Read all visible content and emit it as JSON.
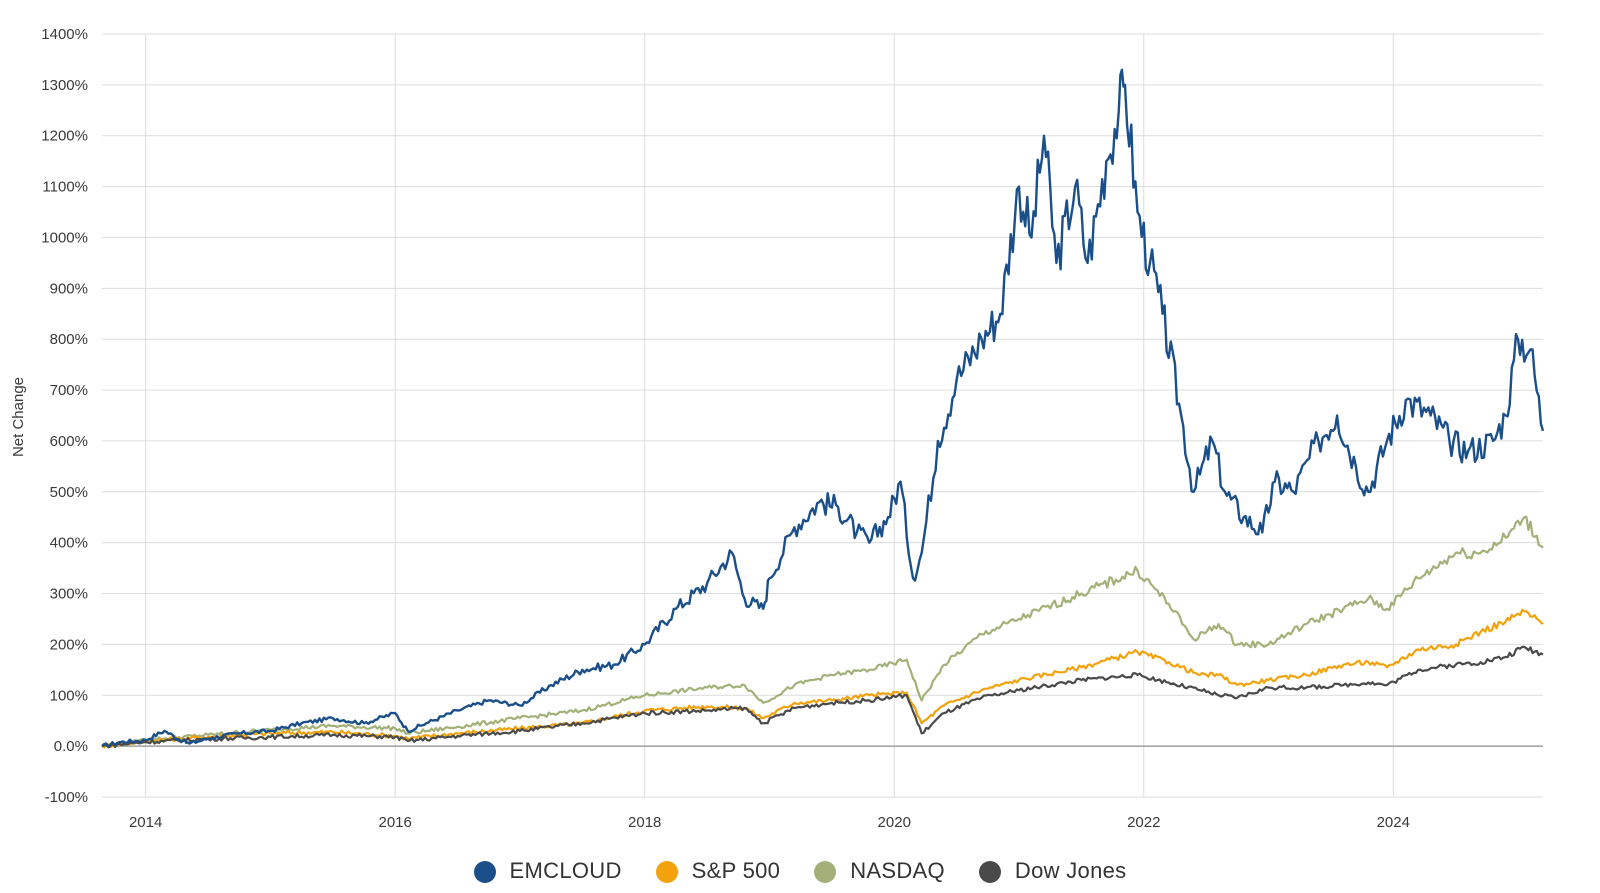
{
  "chart_data": {
    "type": "line",
    "title": "",
    "xlabel": "",
    "ylabel": "Net Change",
    "xlim": [
      2013.65,
      2025.2
    ],
    "ylim": [
      -100,
      1400
    ],
    "y_ticks": [
      -100,
      0,
      100,
      200,
      300,
      400,
      500,
      600,
      700,
      800,
      900,
      1000,
      1100,
      1200,
      1300,
      1400
    ],
    "y_tick_labels": [
      "-100%",
      "0.0%",
      "100%",
      "200%",
      "300%",
      "400%",
      "500%",
      "600%",
      "700%",
      "800%",
      "900%",
      "1000%",
      "1100%",
      "1200%",
      "1300%",
      "1400%"
    ],
    "x_ticks": [
      2014,
      2016,
      2018,
      2020,
      2022,
      2024
    ],
    "x_tick_labels": [
      "2014",
      "2016",
      "2018",
      "2020",
      "2022",
      "2024"
    ],
    "grid": true,
    "legend_position": "bottom-center",
    "series": [
      {
        "name": "EMCLOUD",
        "color": "#1b4f8a",
        "x": [
          2013.65,
          2013.8,
          2014.0,
          2014.15,
          2014.3,
          2014.35,
          2014.5,
          2014.75,
          2015.0,
          2015.25,
          2015.5,
          2015.75,
          2016.0,
          2016.1,
          2016.25,
          2016.5,
          2016.75,
          2017.0,
          2017.25,
          2017.5,
          2017.75,
          2018.0,
          2018.25,
          2018.5,
          2018.7,
          2018.8,
          2018.95,
          2019.0,
          2019.2,
          2019.4,
          2019.55,
          2019.7,
          2019.8,
          2019.95,
          2020.05,
          2020.15,
          2020.22,
          2020.35,
          2020.5,
          2020.7,
          2020.85,
          2021.0,
          2021.1,
          2021.2,
          2021.3,
          2021.45,
          2021.55,
          2021.7,
          2021.8,
          2021.85,
          2021.95,
          2022.05,
          2022.15,
          2022.3,
          2022.4,
          2022.55,
          2022.65,
          2022.8,
          2022.95,
          2023.05,
          2023.2,
          2023.4,
          2023.55,
          2023.7,
          2023.8,
          2023.95,
          2024.1,
          2024.3,
          2024.45,
          2024.6,
          2024.8,
          2024.9,
          2025.0,
          2025.1,
          2025.2
        ],
        "values": [
          0,
          8,
          12,
          30,
          10,
          5,
          15,
          25,
          30,
          45,
          55,
          45,
          65,
          30,
          45,
          70,
          90,
          80,
          120,
          150,
          160,
          200,
          270,
          320,
          380,
          290,
          270,
          330,
          430,
          480,
          470,
          420,
          400,
          450,
          520,
          330,
          380,
          600,
          720,
          800,
          850,
          1100,
          1000,
          1200,
          950,
          1100,
          950,
          1150,
          1250,
          1300,
          1050,
          950,
          850,
          650,
          500,
          600,
          500,
          450,
          420,
          520,
          500,
          600,
          650,
          550,
          500,
          600,
          680,
          650,
          600,
          580,
          600,
          650,
          800,
          780,
          620
        ]
      },
      {
        "name": "S&P 500",
        "color": "#f2a20c",
        "x": [
          2013.65,
          2014.0,
          2014.5,
          2015.0,
          2015.5,
          2016.0,
          2016.1,
          2016.5,
          2017.0,
          2017.5,
          2018.0,
          2018.5,
          2018.8,
          2018.95,
          2019.2,
          2019.5,
          2019.8,
          2020.1,
          2020.22,
          2020.4,
          2020.7,
          2021.0,
          2021.5,
          2021.95,
          2022.2,
          2022.45,
          2022.6,
          2022.75,
          2023.0,
          2023.3,
          2023.6,
          2023.8,
          2023.95,
          2024.2,
          2024.5,
          2024.7,
          2024.9,
          2025.05,
          2025.2
        ],
        "values": [
          0,
          10,
          18,
          25,
          28,
          20,
          15,
          25,
          35,
          45,
          70,
          78,
          75,
          55,
          85,
          90,
          100,
          105,
          45,
          80,
          110,
          130,
          155,
          185,
          165,
          140,
          140,
          120,
          130,
          140,
          160,
          165,
          155,
          190,
          200,
          225,
          245,
          265,
          240
        ]
      },
      {
        "name": "NASDAQ",
        "color": "#a3b179",
        "x": [
          2013.65,
          2014.0,
          2014.5,
          2015.0,
          2015.5,
          2016.0,
          2016.1,
          2016.5,
          2017.0,
          2017.5,
          2018.0,
          2018.5,
          2018.8,
          2018.95,
          2019.2,
          2019.5,
          2019.8,
          2020.1,
          2020.22,
          2020.4,
          2020.7,
          2021.0,
          2021.5,
          2021.95,
          2022.2,
          2022.4,
          2022.6,
          2022.75,
          2023.0,
          2023.3,
          2023.6,
          2023.8,
          2023.95,
          2024.2,
          2024.5,
          2024.7,
          2024.9,
          2025.05,
          2025.2
        ],
        "values": [
          0,
          12,
          22,
          32,
          40,
          35,
          25,
          38,
          55,
          70,
          100,
          115,
          120,
          85,
          120,
          140,
          150,
          170,
          90,
          160,
          220,
          250,
          300,
          345,
          280,
          210,
          240,
          200,
          200,
          240,
          270,
          290,
          270,
          330,
          380,
          380,
          410,
          450,
          390
        ]
      },
      {
        "name": "Dow Jones",
        "color": "#4a4a4a",
        "x": [
          2013.65,
          2014.0,
          2014.5,
          2015.0,
          2015.5,
          2016.0,
          2016.1,
          2016.5,
          2017.0,
          2017.5,
          2018.0,
          2018.5,
          2018.8,
          2018.95,
          2019.2,
          2019.5,
          2019.8,
          2020.1,
          2020.22,
          2020.4,
          2020.7,
          2021.0,
          2021.5,
          2021.95,
          2022.2,
          2022.45,
          2022.6,
          2022.75,
          2023.0,
          2023.3,
          2023.6,
          2023.8,
          2023.95,
          2024.2,
          2024.5,
          2024.7,
          2024.9,
          2025.05,
          2025.2
        ],
        "values": [
          0,
          8,
          14,
          18,
          22,
          18,
          10,
          20,
          30,
          45,
          65,
          70,
          75,
          45,
          75,
          85,
          90,
          100,
          25,
          65,
          95,
          110,
          130,
          140,
          125,
          110,
          100,
          95,
          115,
          115,
          120,
          125,
          120,
          150,
          160,
          165,
          175,
          195,
          180
        ]
      }
    ]
  }
}
